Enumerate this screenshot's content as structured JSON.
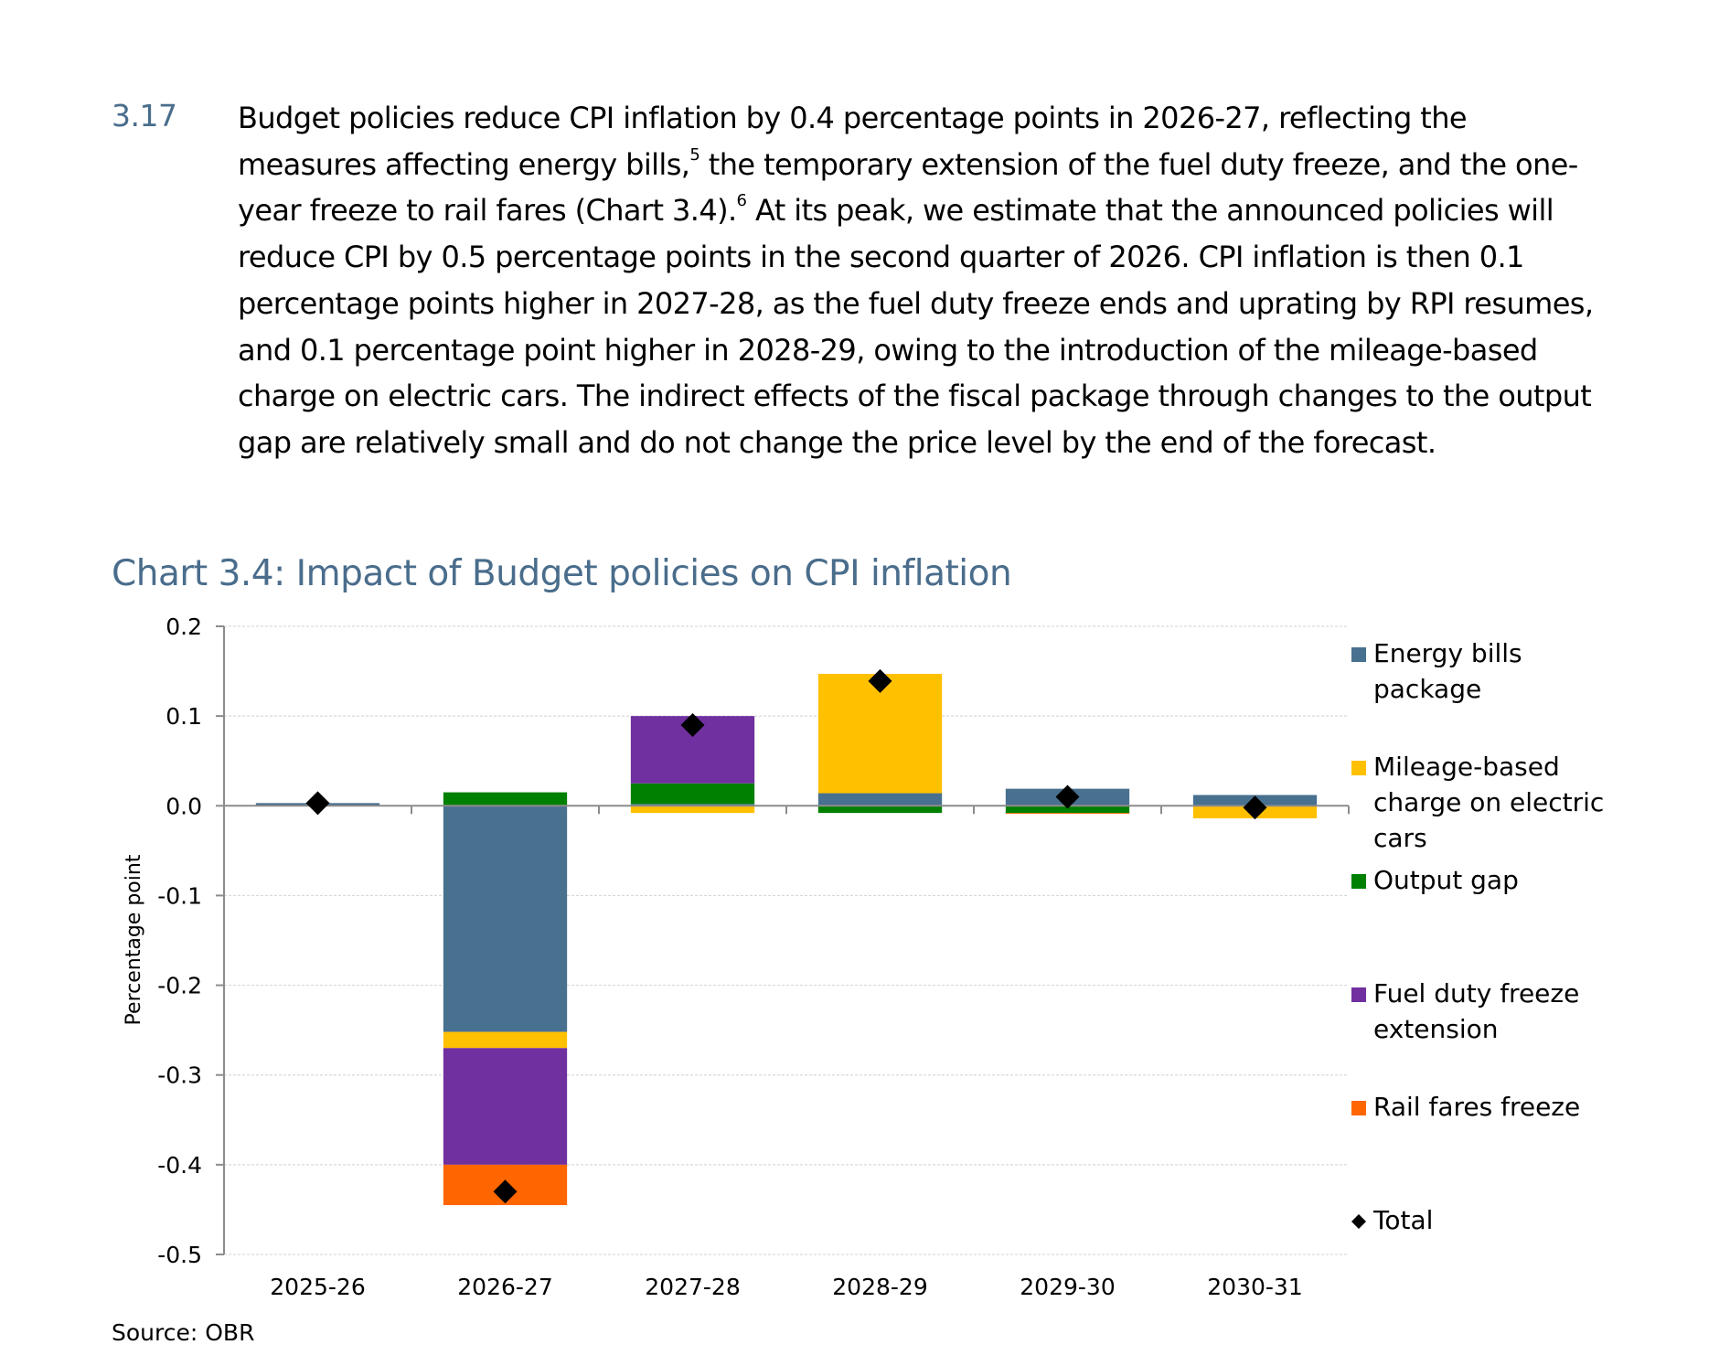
{
  "paragraph": {
    "number": "3.17",
    "segments": [
      {
        "text": "Budget policies reduce CPI inflation by 0.4 percentage points in 2026-27, reflecting the measures affecting energy bills,"
      },
      {
        "sup": "5"
      },
      {
        "text": " the temporary extension of the fuel duty freeze, and the one-year freeze to rail fares (Chart 3.4)."
      },
      {
        "sup": "6"
      },
      {
        "text": " At its peak, we estimate that the announced policies will reduce CPI by 0.5 percentage points in the second quarter of 2026. CPI inflation is then 0.1 percentage points higher in 2027-28, as the fuel duty freeze ends and uprating by RPI resumes, and 0.1 percentage point higher in 2028-29, owing to the introduction of the mileage-based charge on electric cars. The indirect effects of the fiscal package through changes to the output gap are relatively small and do not change the price level by the end of the forecast."
      }
    ]
  },
  "source": "Source: OBR",
  "chart_data": {
    "type": "bar",
    "stacked": true,
    "title": "Chart 3.4: Impact of Budget policies on CPI inflation",
    "xlabel": "",
    "ylabel": "Percentage point",
    "ylim": [
      -0.5,
      0.2
    ],
    "yticks": [
      0.2,
      0.1,
      0.0,
      -0.1,
      -0.2,
      -0.3,
      -0.4,
      -0.5
    ],
    "ytick_labels": [
      "0.2",
      "0.1",
      "0.0",
      "-0.1",
      "-0.2",
      "-0.3",
      "-0.4",
      "-0.5"
    ],
    "grid": true,
    "legend_position": "right",
    "categories": [
      "2025-26",
      "2026-27",
      "2027-28",
      "2028-29",
      "2029-30",
      "2030-31"
    ],
    "series": [
      {
        "name": "Energy bills package",
        "color": "#48708f",
        "values": [
          0.003,
          -0.252,
          0.002,
          0.014,
          0.019,
          0.012
        ]
      },
      {
        "name": "Mileage-based charge on electric cars",
        "color": "#ffc000",
        "values": [
          0.0,
          -0.018,
          -0.008,
          0.133,
          0.0,
          -0.014
        ]
      },
      {
        "name": "Output gap",
        "color": "#008000",
        "values": [
          0.0,
          0.015,
          0.023,
          -0.008,
          -0.008,
          0.0
        ]
      },
      {
        "name": "Fuel duty freeze extension",
        "color": "#7030a0",
        "values": [
          0.0,
          -0.13,
          0.075,
          0.0,
          0.0,
          0.0
        ]
      },
      {
        "name": "Rail fares freeze",
        "color": "#ff6600",
        "values": [
          0.0,
          -0.045,
          0.0,
          0.0,
          -0.001,
          0.0
        ]
      }
    ],
    "total": {
      "name": "Total",
      "marker": "diamond",
      "color": "#000000",
      "values": [
        0.003,
        -0.43,
        0.09,
        0.139,
        0.01,
        -0.002
      ]
    },
    "legend": [
      {
        "label_lines": [
          "Energy bills",
          "package"
        ],
        "color": "#48708f",
        "marker": "square"
      },
      {
        "label_lines": [
          "Mileage-based",
          "charge on electric",
          "cars"
        ],
        "color": "#ffc000",
        "marker": "square"
      },
      {
        "label_lines": [
          "Output gap"
        ],
        "color": "#008000",
        "marker": "square"
      },
      {
        "label_lines": [
          "Fuel duty freeze",
          "extension"
        ],
        "color": "#7030a0",
        "marker": "square"
      },
      {
        "label_lines": [
          "Rail fares freeze"
        ],
        "color": "#ff6600",
        "marker": "square"
      },
      {
        "label_lines": [
          "Total"
        ],
        "color": "#000000",
        "marker": "diamond"
      }
    ]
  }
}
